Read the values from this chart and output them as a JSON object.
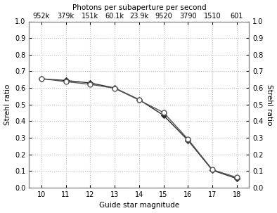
{
  "title": "Photons per subaperture per second",
  "xlabel": "Guide star magnitude",
  "ylabel_left": "Strehl ratio",
  "ylabel_right": "Strehl ratio",
  "x": [
    10,
    11,
    12,
    13,
    14,
    15,
    16,
    17,
    18
  ],
  "top_xtick_labels": [
    "952k",
    "379k",
    "151k",
    "60.1k",
    "23.9k",
    "9520",
    "3790",
    "1510",
    "601"
  ],
  "line1_y": [
    0.655,
    0.645,
    0.63,
    0.6,
    0.53,
    0.435,
    0.285,
    0.105,
    0.055
  ],
  "line2_y": [
    0.656,
    0.638,
    0.622,
    0.598,
    0.527,
    0.452,
    0.292,
    0.108,
    0.062
  ],
  "line1_color": "#2a2a2a",
  "line2_color": "#555555",
  "line1_marker": "D",
  "line2_marker": "o",
  "line1_markersize": 4,
  "line2_markersize": 5,
  "xlim": [
    9.5,
    18.5
  ],
  "ylim": [
    0,
    1.0
  ],
  "xticks": [
    10,
    11,
    12,
    13,
    14,
    15,
    16,
    17,
    18
  ],
  "yticks": [
    0,
    0.1,
    0.2,
    0.3,
    0.4,
    0.5,
    0.6,
    0.7,
    0.8,
    0.9,
    1.0
  ],
  "grid_color": "#bbbbbb",
  "background_color": "#ffffff"
}
